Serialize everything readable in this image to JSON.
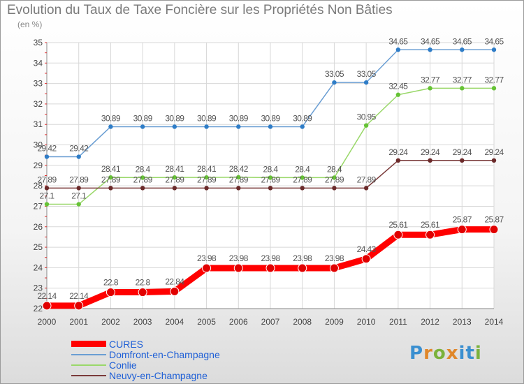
{
  "page": {
    "title": "Evolution du Taux de Taxe Foncière sur les Propriétés Non Bâties",
    "unit": "(en %)",
    "logo": {
      "letters": [
        "P",
        "r",
        "o",
        "x",
        "i",
        "t",
        "i"
      ],
      "colors": [
        "#3a8fd0",
        "#e0872a",
        "#7bb23c",
        "#e0872a",
        "#3a8fd0",
        "#3a8fd0",
        "#7bb23c"
      ]
    }
  },
  "chart_data": {
    "type": "line",
    "title": "Evolution du Taux de Taxe Foncière sur les Propriétés Non Bâties",
    "ylabel": "(en %)",
    "xlabel": "",
    "ylim": [
      22,
      35
    ],
    "yticks": [
      22,
      23,
      24,
      25,
      26,
      27,
      28,
      29,
      30,
      31,
      32,
      33,
      34,
      35
    ],
    "x": [
      "2000",
      "2001",
      "2002",
      "2003",
      "2004",
      "2005",
      "2006",
      "2007",
      "2008",
      "2009",
      "2010",
      "2011",
      "2012",
      "2013",
      "2014"
    ],
    "grid": true,
    "legend_position": "bottom-left",
    "series": [
      {
        "name": "CURES",
        "color": "#ff0000",
        "marker_color": "#e10000",
        "bold": true,
        "values": [
          22.14,
          22.14,
          22.8,
          22.8,
          22.84,
          23.98,
          23.98,
          23.98,
          23.98,
          23.98,
          24.43,
          25.61,
          25.61,
          25.87,
          25.87
        ],
        "labels": [
          "22.14",
          "22.14",
          "22.8",
          "22.8",
          "22.84",
          "23.98",
          "23.98",
          "23.98",
          "23.98",
          "23.98",
          "24.43",
          "25.61",
          "25.61",
          "25.87",
          "25.87"
        ]
      },
      {
        "name": "Domfront-en-Champagne",
        "color": "#6a9ed3",
        "marker_color": "#2f7dc7",
        "values": [
          29.42,
          29.42,
          30.89,
          30.89,
          30.89,
          30.89,
          30.89,
          30.89,
          30.89,
          33.05,
          33.05,
          34.65,
          34.65,
          34.65,
          34.65
        ],
        "labels": [
          "29.42",
          "29.42",
          "30.89",
          "30.89",
          "30.89",
          "30.89",
          "30.89",
          "30.89",
          "30.89",
          "33.05",
          "33.05",
          "34.65",
          "34.65",
          "34.65",
          "34.65"
        ]
      },
      {
        "name": "Conlie",
        "color": "#9ad86a",
        "marker_color": "#66c236",
        "values": [
          27.1,
          27.1,
          28.41,
          28.4,
          28.41,
          28.41,
          28.42,
          28.4,
          28.4,
          28.4,
          30.95,
          32.45,
          32.77,
          32.77,
          32.77
        ],
        "labels": [
          "27.1",
          "27.1",
          "28.41",
          "28.4",
          "28.41",
          "28.41",
          "28.42",
          "28.4",
          "28.4",
          "28.4",
          "30.95",
          "32.45",
          "32.77",
          "32.77",
          "32.77"
        ]
      },
      {
        "name": "Neuvy-en-Champagne",
        "color": "#7a3a3a",
        "marker_color": "#6b2a2a",
        "values": [
          27.89,
          27.89,
          27.89,
          27.89,
          27.89,
          27.89,
          27.89,
          27.89,
          27.89,
          27.89,
          27.89,
          29.24,
          29.24,
          29.24,
          29.24
        ],
        "labels": [
          "27.89",
          "27.89",
          "27.89",
          "27.89",
          "27.89",
          "27.89",
          "27.89",
          "27.89",
          "27.89",
          "27.89",
          "27.89",
          "29.24",
          "29.24",
          "29.24",
          "29.24"
        ]
      }
    ]
  }
}
